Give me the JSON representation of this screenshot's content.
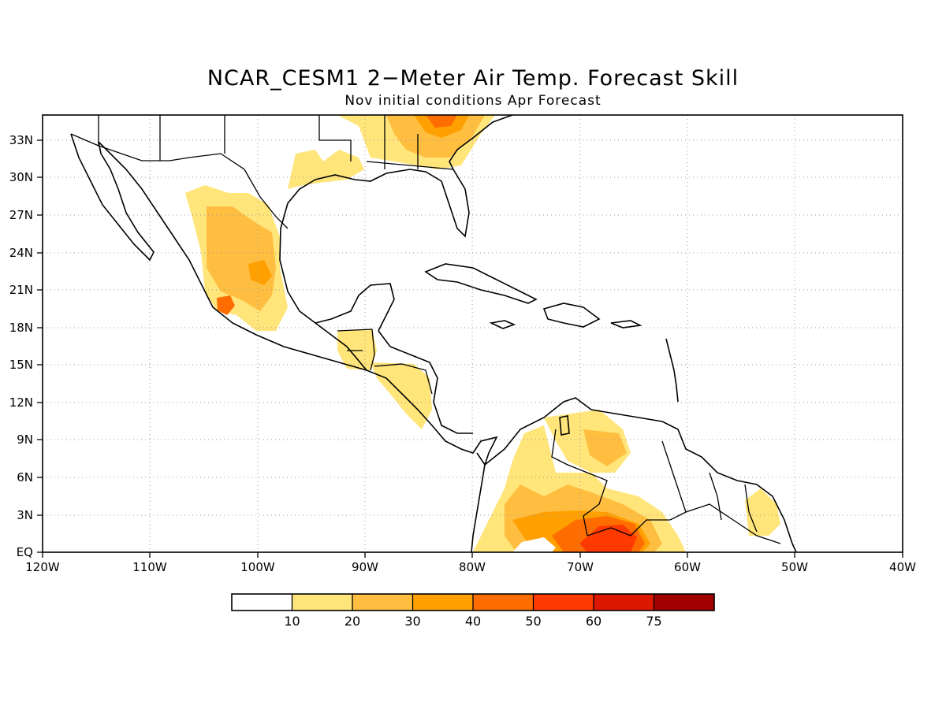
{
  "title": "NCAR_CESM1 2−Meter Air Temp. Forecast Skill",
  "subtitle": "Nov initial conditions  Apr Forecast",
  "map": {
    "lon_range": [
      -120,
      -40
    ],
    "lat_range": [
      0,
      35
    ],
    "x_ticks": [
      "120W",
      "110W",
      "100W",
      "90W",
      "80W",
      "70W",
      "60W",
      "50W",
      "40W"
    ],
    "y_ticks": [
      "EQ",
      "3N",
      "6N",
      "9N",
      "12N",
      "15N",
      "18N",
      "21N",
      "24N",
      "27N",
      "30N",
      "33N"
    ],
    "grid": "dotted"
  },
  "colorbar": {
    "labels": [
      "10",
      "20",
      "30",
      "40",
      "50",
      "60",
      "75"
    ],
    "colors": [
      "#ffffff",
      "#ffe57a",
      "#ffbe40",
      "#ffa000",
      "#ff6c00",
      "#ff3a00",
      "#dd1800",
      "#a00000"
    ]
  }
}
